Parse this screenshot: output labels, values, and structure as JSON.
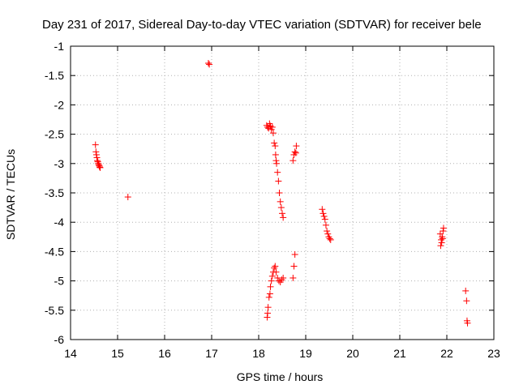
{
  "chart_data": {
    "type": "scatter",
    "title": "Day 231 of 2017, Sidereal Day-to-day VTEC variation (SDTVAR) for receiver bele",
    "xlabel": "GPS time / hours",
    "ylabel": "SDTVAR / TECUs",
    "xlim": [
      14,
      23
    ],
    "ylim": [
      -6,
      -1
    ],
    "xticks": [
      "14",
      "15",
      "16",
      "17",
      "18",
      "19",
      "20",
      "21",
      "22",
      "23"
    ],
    "yticks": [
      "-1",
      "-1.5",
      "-2",
      "-2.5",
      "-3",
      "-3.5",
      "-4",
      "-4.5",
      "-5",
      "-5.5",
      "-6"
    ],
    "grid": true,
    "marker": "+",
    "color": "#ff0000",
    "series": [
      {
        "name": "SDTVAR",
        "x": [
          14.53,
          14.54,
          14.55,
          14.56,
          14.57,
          14.58,
          14.59,
          14.6,
          14.61,
          14.62,
          14.63,
          15.22,
          16.93,
          16.95,
          18.17,
          18.19,
          18.21,
          18.23,
          18.25,
          18.27,
          18.29,
          18.31,
          18.33,
          18.35,
          18.36,
          18.37,
          18.38,
          18.4,
          18.42,
          18.44,
          18.46,
          18.48,
          18.5,
          18.52,
          18.18,
          18.19,
          18.2,
          18.22,
          18.24,
          18.25,
          18.27,
          18.29,
          18.31,
          18.33,
          18.35,
          18.37,
          18.4,
          18.43,
          18.46,
          18.49,
          18.52,
          18.73,
          18.75,
          18.77,
          18.79,
          18.8,
          18.73,
          18.75,
          18.77,
          19.35,
          19.37,
          19.39,
          19.41,
          19.43,
          19.45,
          19.47,
          19.49,
          19.51,
          19.53,
          21.86,
          21.87,
          21.88,
          21.89,
          21.9,
          21.91,
          21.92,
          21.93,
          22.4,
          22.42,
          22.43,
          22.44
        ],
        "y": [
          -2.68,
          -2.8,
          -2.85,
          -2.9,
          -2.95,
          -2.97,
          -3.0,
          -3.02,
          -3.04,
          -3.06,
          -3.07,
          -3.57,
          -1.29,
          -1.31,
          -2.35,
          -2.38,
          -2.4,
          -2.32,
          -2.36,
          -2.42,
          -2.38,
          -2.48,
          -2.65,
          -2.7,
          -2.85,
          -2.95,
          -3.0,
          -3.15,
          -3.3,
          -3.5,
          -3.65,
          -3.75,
          -3.85,
          -3.92,
          -5.62,
          -5.55,
          -5.45,
          -5.28,
          -5.22,
          -5.1,
          -5.0,
          -4.92,
          -4.85,
          -4.78,
          -4.75,
          -4.85,
          -4.95,
          -5.0,
          -5.02,
          -4.98,
          -4.95,
          -2.95,
          -2.85,
          -2.8,
          -2.82,
          -2.7,
          -4.95,
          -4.75,
          -4.55,
          -3.78,
          -3.85,
          -3.9,
          -3.95,
          -4.05,
          -4.15,
          -4.2,
          -4.25,
          -4.28,
          -4.3,
          -4.2,
          -4.4,
          -4.3,
          -4.35,
          -4.25,
          -4.28,
          -4.15,
          -4.1,
          -5.17,
          -5.34,
          -5.68,
          -5.72
        ]
      }
    ]
  }
}
